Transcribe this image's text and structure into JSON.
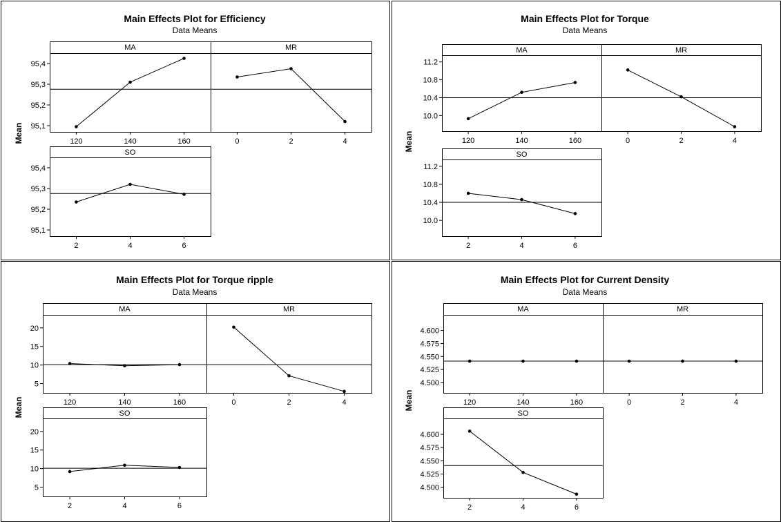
{
  "chart_data": [
    {
      "type": "line",
      "title": "Main Effects Plot for Efficiency",
      "subtitle": "Data Means",
      "ylabel": "Mean",
      "ylim": [
        95.07,
        95.45
      ],
      "yticks": [
        95.1,
        95.2,
        95.3,
        95.4
      ],
      "ytick_labels": [
        "95,1",
        "95,2",
        "95,3",
        "95,4"
      ],
      "grand_mean": 95.276,
      "panels": [
        {
          "name": "MA",
          "x": [
            120,
            140,
            160
          ],
          "x_labels": [
            "120",
            "140",
            "160"
          ],
          "values": [
            95.095,
            95.31,
            95.425
          ]
        },
        {
          "name": "MR",
          "x": [
            0,
            2,
            4
          ],
          "x_labels": [
            "0",
            "2",
            "4"
          ],
          "values": [
            95.335,
            95.375,
            95.12
          ]
        },
        {
          "name": "SO",
          "x": [
            2,
            4,
            6
          ],
          "x_labels": [
            "2",
            "4",
            "6"
          ],
          "values": [
            95.235,
            95.32,
            95.272
          ]
        }
      ]
    },
    {
      "type": "line",
      "title": "Main Effects Plot for Torque",
      "subtitle": "Data Means",
      "ylabel": "Mean",
      "ylim": [
        9.65,
        11.35
      ],
      "yticks": [
        10.0,
        10.4,
        10.8,
        11.2
      ],
      "ytick_labels": [
        "10.0",
        "10.4",
        "10.8",
        "11.2"
      ],
      "grand_mean": 10.4,
      "panels": [
        {
          "name": "MA",
          "x": [
            120,
            140,
            160
          ],
          "x_labels": [
            "120",
            "140",
            "160"
          ],
          "values": [
            9.93,
            10.52,
            10.74
          ]
        },
        {
          "name": "MR",
          "x": [
            0,
            2,
            4
          ],
          "x_labels": [
            "0",
            "2",
            "4"
          ],
          "values": [
            11.02,
            10.42,
            9.75
          ]
        },
        {
          "name": "SO",
          "x": [
            2,
            4,
            6
          ],
          "x_labels": [
            "2",
            "4",
            "6"
          ],
          "values": [
            10.6,
            10.46,
            10.15
          ]
        }
      ]
    },
    {
      "type": "line",
      "title": "Main Effects Plot for Torque ripple",
      "subtitle": "Data Means",
      "ylabel": "Mean",
      "ylim": [
        2.5,
        23.5
      ],
      "yticks": [
        5,
        10,
        15,
        20
      ],
      "ytick_labels": [
        "5",
        "10",
        "15",
        "20"
      ],
      "grand_mean": 10.1,
      "panels": [
        {
          "name": "MA",
          "x": [
            120,
            140,
            160
          ],
          "x_labels": [
            "120",
            "140",
            "160"
          ],
          "values": [
            10.4,
            9.8,
            10.1
          ]
        },
        {
          "name": "MR",
          "x": [
            0,
            2,
            4
          ],
          "x_labels": [
            "0",
            "2",
            "4"
          ],
          "values": [
            20.2,
            7.1,
            2.9
          ]
        },
        {
          "name": "SO",
          "x": [
            2,
            4,
            6
          ],
          "x_labels": [
            "2",
            "4",
            "6"
          ],
          "values": [
            9.2,
            10.9,
            10.3
          ]
        }
      ]
    },
    {
      "type": "line",
      "title": "Main Effects Plot for Current Density",
      "subtitle": "Data Means",
      "ylabel": "Mean",
      "ylim": [
        4.48,
        4.63
      ],
      "yticks": [
        4.5,
        4.525,
        4.55,
        4.575,
        4.6
      ],
      "ytick_labels": [
        "4.500",
        "4.525",
        "4.550",
        "4.575",
        "4.600"
      ],
      "grand_mean": 4.541,
      "panels": [
        {
          "name": "MA",
          "x": [
            120,
            140,
            160
          ],
          "x_labels": [
            "120",
            "140",
            "160"
          ],
          "values": [
            4.541,
            4.541,
            4.541
          ]
        },
        {
          "name": "MR",
          "x": [
            0,
            2,
            4
          ],
          "x_labels": [
            "0",
            "2",
            "4"
          ],
          "values": [
            4.541,
            4.541,
            4.541
          ]
        },
        {
          "name": "SO",
          "x": [
            2,
            4,
            6
          ],
          "x_labels": [
            "2",
            "4",
            "6"
          ],
          "values": [
            4.606,
            4.528,
            4.487
          ]
        }
      ]
    }
  ]
}
